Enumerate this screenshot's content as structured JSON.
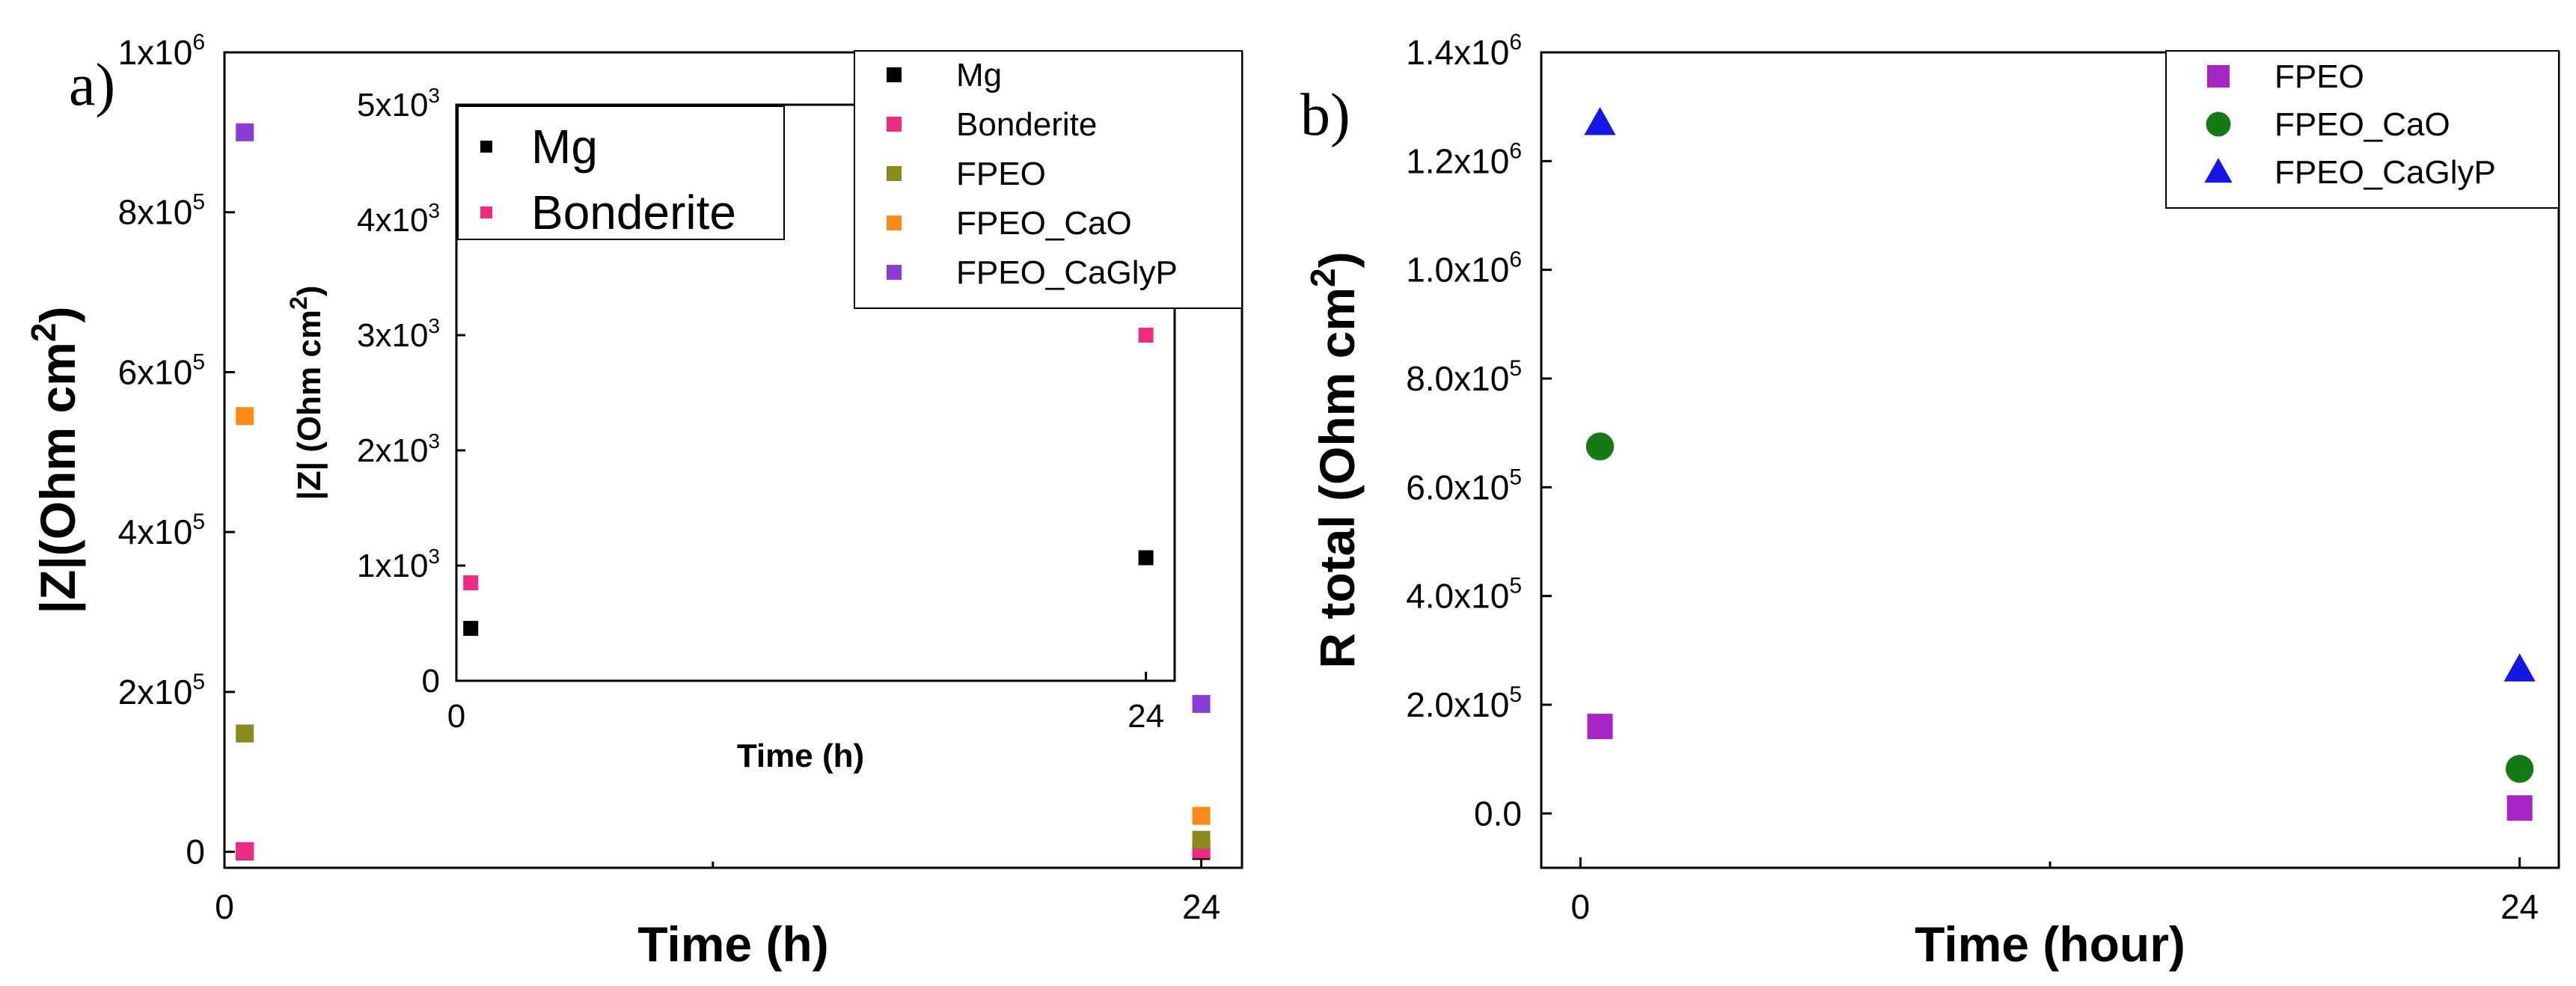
{
  "chart_data": [
    {
      "id": "a",
      "panel_label": "a)",
      "type": "scatter",
      "xlabel": "Time (h)",
      "ylabel_main": "|Z|(Ohm cm",
      "ylabel_sup": "2",
      "ylabel_close": ")",
      "x_ticks": [
        {
          "value": 0,
          "label": "0"
        },
        {
          "value": 24,
          "label": "24"
        }
      ],
      "y_ticks": [
        {
          "value": 0,
          "label": "0",
          "sup": ""
        },
        {
          "value": 200000,
          "label": "2x10",
          "sup": "5"
        },
        {
          "value": 400000,
          "label": "4x10",
          "sup": "5"
        },
        {
          "value": 600000,
          "label": "6x10",
          "sup": "5"
        },
        {
          "value": 800000,
          "label": "8x10",
          "sup": "5"
        },
        {
          "value": 1000000,
          "label": "1x10",
          "sup": "6"
        }
      ],
      "xlim": [
        0,
        25
      ],
      "ylim": [
        -20000,
        1000000
      ],
      "legend_position": "top-right",
      "series": [
        {
          "name": "Mg",
          "color": "#000000",
          "marker": "square",
          "points": [
            {
              "x": 0.5,
              "y": 455
            },
            {
              "x": 24,
              "y": 1068
            }
          ]
        },
        {
          "name": "Bonderite",
          "color": "#ee2b84",
          "marker": "square",
          "points": [
            {
              "x": 0.5,
              "y": 850
            },
            {
              "x": 24,
              "y": 3000
            }
          ]
        },
        {
          "name": "FPEO",
          "color": "#8a8a1e",
          "marker": "square",
          "points": [
            {
              "x": 0.5,
              "y": 148000
            },
            {
              "x": 24,
              "y": 15000
            }
          ]
        },
        {
          "name": "FPEO_CaO",
          "color": "#ff8a17",
          "marker": "square",
          "points": [
            {
              "x": 0.5,
              "y": 545000
            },
            {
              "x": 24,
              "y": 45000
            }
          ]
        },
        {
          "name": "FPEO_CaGlyP",
          "color": "#8b3bd6",
          "marker": "square",
          "points": [
            {
              "x": 0.5,
              "y": 900000
            },
            {
              "x": 24,
              "y": 185000
            }
          ]
        }
      ]
    },
    {
      "id": "a_inset",
      "type": "scatter",
      "xlabel": "Time (h)",
      "ylabel_main": "|Z| (Ohm cm",
      "ylabel_sup": "2",
      "ylabel_close": ")",
      "x_ticks": [
        {
          "value": 0,
          "label": "0"
        },
        {
          "value": 24,
          "label": "24"
        }
      ],
      "y_ticks": [
        {
          "value": 0,
          "label": "0",
          "sup": ""
        },
        {
          "value": 1000,
          "label": "1x10",
          "sup": "3"
        },
        {
          "value": 2000,
          "label": "2x10",
          "sup": "3"
        },
        {
          "value": 3000,
          "label": "3x10",
          "sup": "3"
        },
        {
          "value": 4000,
          "label": "4x10",
          "sup": "3"
        },
        {
          "value": 5000,
          "label": "5x10",
          "sup": "3"
        }
      ],
      "xlim": [
        0,
        25
      ],
      "ylim": [
        0,
        5000
      ],
      "legend_position": "top-left",
      "series": [
        {
          "name": "Mg",
          "color": "#000000",
          "marker": "square",
          "points": [
            {
              "x": 0.5,
              "y": 455
            },
            {
              "x": 24,
              "y": 1068
            }
          ]
        },
        {
          "name": "Bonderite",
          "color": "#ee2b84",
          "marker": "square",
          "points": [
            {
              "x": 0.5,
              "y": 850
            },
            {
              "x": 24,
              "y": 3000
            }
          ]
        }
      ]
    },
    {
      "id": "b",
      "panel_label": "b)",
      "type": "scatter",
      "xlabel": "Time (hour)",
      "ylabel_main": "R total (Ohm cm",
      "ylabel_sup": "2",
      "ylabel_close": ")",
      "x_ticks": [
        {
          "value": 0,
          "label": "0"
        },
        {
          "value": 24,
          "label": "24"
        }
      ],
      "y_ticks": [
        {
          "value": 0,
          "label": "0.0",
          "sup": ""
        },
        {
          "value": 200000,
          "label": "2.0x10",
          "sup": "5"
        },
        {
          "value": 400000,
          "label": "4.0x10",
          "sup": "5"
        },
        {
          "value": 600000,
          "label": "6.0x10",
          "sup": "5"
        },
        {
          "value": 800000,
          "label": "8.0x10",
          "sup": "5"
        },
        {
          "value": 1000000,
          "label": "1.0x10",
          "sup": "6"
        },
        {
          "value": 1200000,
          "label": "1.2x10",
          "sup": "6"
        },
        {
          "value": 1400000,
          "label": "1.4x10",
          "sup": "6"
        }
      ],
      "xlim": [
        -1,
        25
      ],
      "ylim": [
        -100000,
        1400000
      ],
      "legend_position": "top-right",
      "series": [
        {
          "name": "FPEO",
          "color": "#a526c4",
          "marker": "square",
          "points": [
            {
              "x": 0.5,
              "y": 160000
            },
            {
              "x": 24,
              "y": 10000
            }
          ]
        },
        {
          "name": "FPEO_CaO",
          "color": "#157a15",
          "marker": "circle",
          "points": [
            {
              "x": 0.5,
              "y": 675000
            },
            {
              "x": 24,
              "y": 82000
            }
          ]
        },
        {
          "name": "FPEO_CaGlyP",
          "color": "#1616e6",
          "marker": "triangle",
          "points": [
            {
              "x": 0.5,
              "y": 1270000
            },
            {
              "x": 24,
              "y": 265000
            }
          ]
        }
      ]
    }
  ]
}
